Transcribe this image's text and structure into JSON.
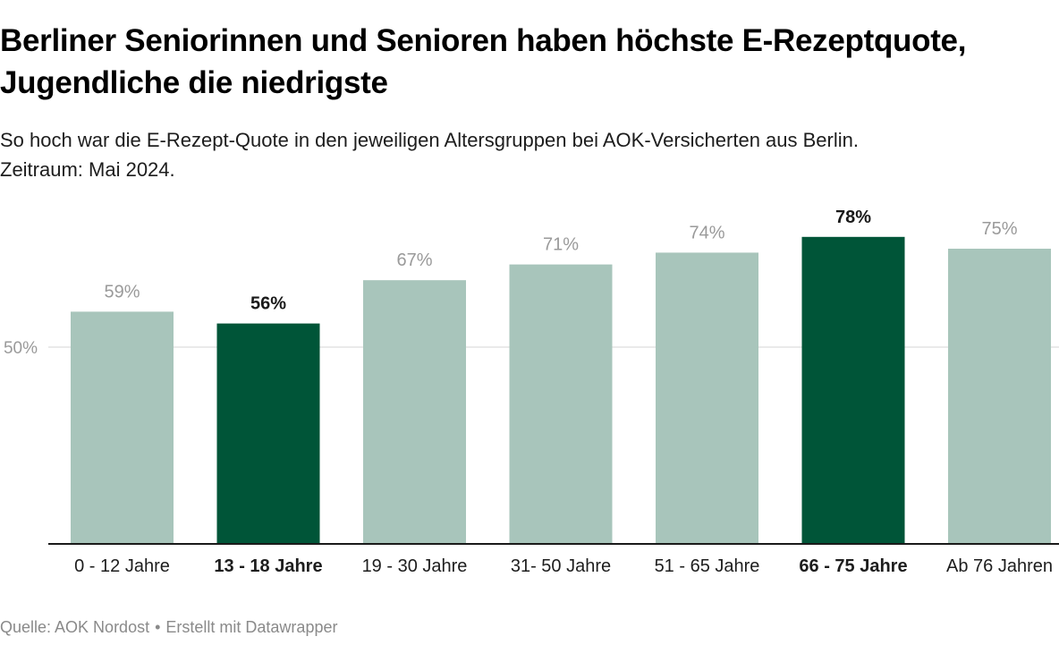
{
  "header": {
    "title": "Berliner Seniorinnen und Senioren haben höchste E-Rezeptquote, Jugendliche die niedrigste",
    "subtitle": "So hoch war die E-Rezept-Quote in den jeweiligen Altersgruppen bei AOK-Versicherten aus Berlin.\nZeitraum: Mai 2024."
  },
  "colors": {
    "bar_default": "#a8c5bb",
    "bar_highlight": "#005538",
    "label_default": "#9a9a9a",
    "label_highlight": "#1a1a1a",
    "gridline": "#e3e3e3",
    "baseline": "#1a1a1a",
    "axis_label": "#1d1d1d"
  },
  "chart_data": {
    "type": "bar",
    "title": "Berliner Seniorinnen und Senioren haben höchste E-Rezeptquote, Jugendliche die niedrigste",
    "xlabel": "",
    "ylabel": "",
    "ylim": [
      0,
      78
    ],
    "yticks": [
      {
        "value": 50,
        "label": "50%"
      }
    ],
    "grid": true,
    "legend": "none",
    "categories": [
      "0 - 12 Jahre",
      "13 - 18 Jahre",
      "19 - 30 Jahre",
      "31- 50 Jahre",
      "51 - 65 Jahre",
      "66 - 75 Jahre",
      "Ab 76 Jahren"
    ],
    "values": [
      59,
      56,
      67,
      71,
      74,
      78,
      75
    ],
    "value_labels": [
      "59%",
      "56%",
      "67%",
      "71%",
      "74%",
      "78%",
      "75%"
    ],
    "highlighted": [
      false,
      true,
      false,
      false,
      false,
      true,
      false
    ],
    "unit": "%"
  },
  "footer": {
    "source": "Quelle: AOK Nordost",
    "separator": "•",
    "credit": "Erstellt mit Datawrapper"
  }
}
